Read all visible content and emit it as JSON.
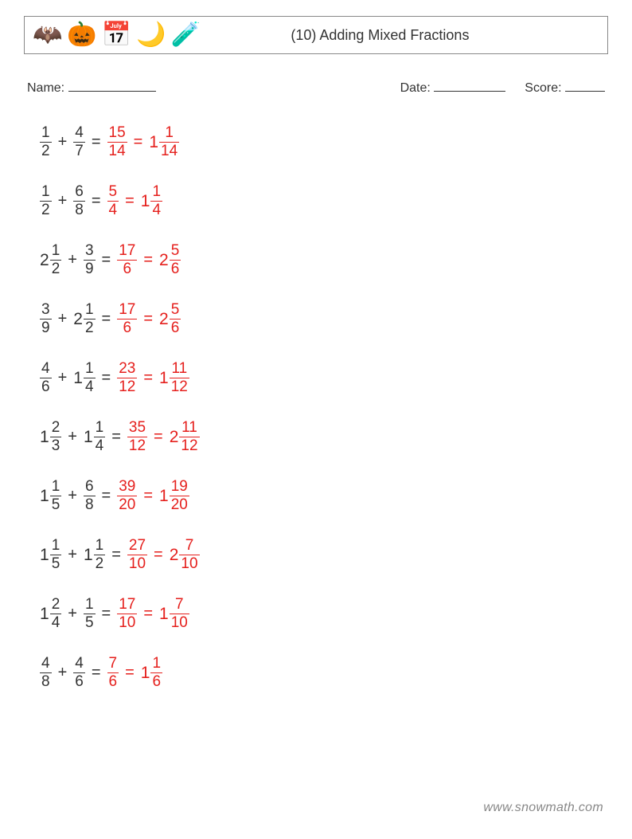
{
  "colors": {
    "problem": "#333333",
    "answer": "#e5201d",
    "border": "#888888",
    "background": "#ffffff",
    "footer": "#888888"
  },
  "typography": {
    "title_fontsize": 18,
    "info_fontsize": 16,
    "row_fontsize": 21,
    "frac_fontsize": 19,
    "footer_fontsize": 16
  },
  "header": {
    "title": "(10) Adding Mixed Fractions",
    "icons": [
      "🦇",
      "🎃",
      "📅",
      "🌙",
      "🧪"
    ]
  },
  "info": {
    "name_label": "Name:",
    "date_label": "Date:",
    "score_label": "Score:"
  },
  "operator": "+",
  "equals": "=",
  "problems": [
    {
      "a": {
        "w": null,
        "n": 1,
        "d": 2
      },
      "b": {
        "w": null,
        "n": 4,
        "d": 7
      },
      "imp": {
        "n": 15,
        "d": 14
      },
      "mix": {
        "w": 1,
        "n": 1,
        "d": 14
      }
    },
    {
      "a": {
        "w": null,
        "n": 1,
        "d": 2
      },
      "b": {
        "w": null,
        "n": 6,
        "d": 8
      },
      "imp": {
        "n": 5,
        "d": 4
      },
      "mix": {
        "w": 1,
        "n": 1,
        "d": 4
      }
    },
    {
      "a": {
        "w": 2,
        "n": 1,
        "d": 2
      },
      "b": {
        "w": null,
        "n": 3,
        "d": 9
      },
      "imp": {
        "n": 17,
        "d": 6
      },
      "mix": {
        "w": 2,
        "n": 5,
        "d": 6
      }
    },
    {
      "a": {
        "w": null,
        "n": 3,
        "d": 9
      },
      "b": {
        "w": 2,
        "n": 1,
        "d": 2
      },
      "imp": {
        "n": 17,
        "d": 6
      },
      "mix": {
        "w": 2,
        "n": 5,
        "d": 6
      }
    },
    {
      "a": {
        "w": null,
        "n": 4,
        "d": 6
      },
      "b": {
        "w": 1,
        "n": 1,
        "d": 4
      },
      "imp": {
        "n": 23,
        "d": 12
      },
      "mix": {
        "w": 1,
        "n": 11,
        "d": 12
      }
    },
    {
      "a": {
        "w": 1,
        "n": 2,
        "d": 3
      },
      "b": {
        "w": 1,
        "n": 1,
        "d": 4
      },
      "imp": {
        "n": 35,
        "d": 12
      },
      "mix": {
        "w": 2,
        "n": 11,
        "d": 12
      }
    },
    {
      "a": {
        "w": 1,
        "n": 1,
        "d": 5
      },
      "b": {
        "w": null,
        "n": 6,
        "d": 8
      },
      "imp": {
        "n": 39,
        "d": 20
      },
      "mix": {
        "w": 1,
        "n": 19,
        "d": 20
      }
    },
    {
      "a": {
        "w": 1,
        "n": 1,
        "d": 5
      },
      "b": {
        "w": 1,
        "n": 1,
        "d": 2
      },
      "imp": {
        "n": 27,
        "d": 10
      },
      "mix": {
        "w": 2,
        "n": 7,
        "d": 10
      }
    },
    {
      "a": {
        "w": 1,
        "n": 2,
        "d": 4
      },
      "b": {
        "w": null,
        "n": 1,
        "d": 5
      },
      "imp": {
        "n": 17,
        "d": 10
      },
      "mix": {
        "w": 1,
        "n": 7,
        "d": 10
      }
    },
    {
      "a": {
        "w": null,
        "n": 4,
        "d": 8
      },
      "b": {
        "w": null,
        "n": 4,
        "d": 6
      },
      "imp": {
        "n": 7,
        "d": 6
      },
      "mix": {
        "w": 1,
        "n": 1,
        "d": 6
      }
    }
  ],
  "footer": "www.snowmath.com"
}
